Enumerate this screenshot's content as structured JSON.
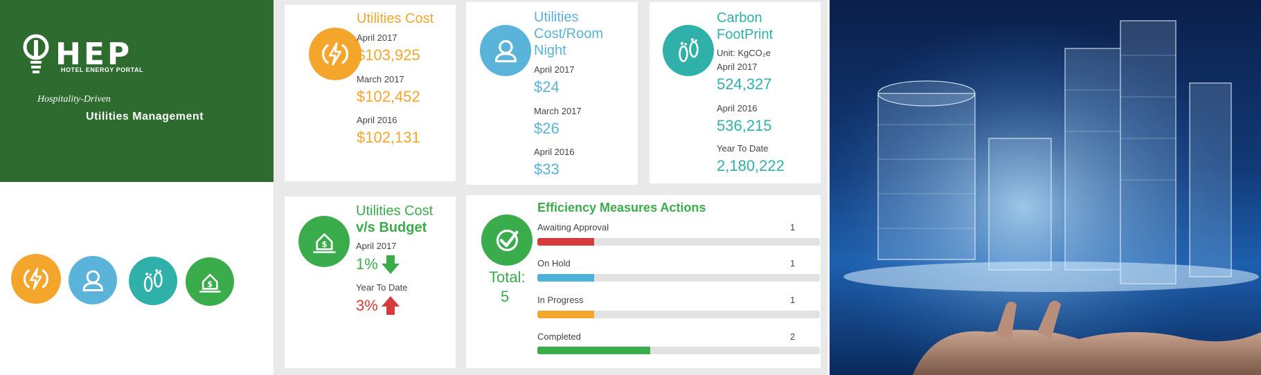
{
  "brand": {
    "logo_text": "HEP",
    "logo_subtitle": "HOTEL ENERGY PORTAL",
    "tagline_1": "Hospitality-Driven",
    "tagline_2": "Utilities Management"
  },
  "icons": [
    "energy-bolt-icon",
    "user-icon",
    "footprint-icon",
    "house-dollar-icon"
  ],
  "colors": {
    "orange": "#f4a52b",
    "blue": "#5ab3d8",
    "teal": "#2fb0a9",
    "green": "#3aac4c",
    "red": "#d63b3b",
    "brand_green": "#2e6b2f"
  },
  "utilities_cost": {
    "title": "Utilities Cost",
    "items": [
      {
        "label": "April 2017",
        "value": "$103,925"
      },
      {
        "label": "March 2017",
        "value": "$102,452"
      },
      {
        "label": "April 2016",
        "value": "$102,131"
      }
    ]
  },
  "cost_room_night": {
    "title_1": "Utilities",
    "title_2": "Cost/Room",
    "title_3": "Night",
    "items": [
      {
        "label": "April 2017",
        "value": "$24"
      },
      {
        "label": "March 2017",
        "value": "$26"
      },
      {
        "label": "April 2016",
        "value": "$33"
      }
    ]
  },
  "carbon": {
    "title_1": "Carbon",
    "title_2": "FootPrint",
    "unit": "Unit: KgCO₂e",
    "items": [
      {
        "label": "April 2017",
        "value": "524,327"
      },
      {
        "label": "April 2016",
        "value": "536,215"
      },
      {
        "label": "Year To Date",
        "value": "2,180,222"
      }
    ]
  },
  "budget": {
    "title_1": "Utilities Cost",
    "title_2": "v/s Budget",
    "items": [
      {
        "label": "April 2017",
        "value": "1%",
        "trend": "down"
      },
      {
        "label": "Year To Date",
        "value": "3%",
        "trend": "up"
      }
    ]
  },
  "efficiency": {
    "title": "Efficiency Measures Actions",
    "total_label": "Total:",
    "total_value": "5",
    "rows": [
      {
        "label": "Awaiting Approval",
        "count": "1",
        "fraction": 0.2,
        "color": "#d63b3b"
      },
      {
        "label": "On Hold",
        "count": "1",
        "fraction": 0.2,
        "color": "#4fb3d9"
      },
      {
        "label": "In Progress",
        "count": "1",
        "fraction": 0.2,
        "color": "#f4a52b"
      },
      {
        "label": "Completed",
        "count": "2",
        "fraction": 0.4,
        "color": "#3aac4c"
      }
    ]
  }
}
